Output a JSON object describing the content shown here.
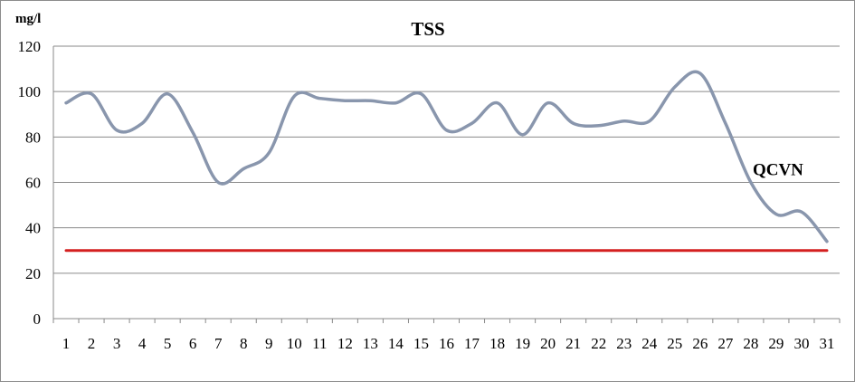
{
  "chart_data": {
    "type": "line",
    "title": "TSS",
    "ylabel": "mg/l",
    "xlabel": "",
    "ylim": [
      0,
      120
    ],
    "yticks": [
      0,
      20,
      40,
      60,
      80,
      100,
      120
    ],
    "grid": true,
    "legend": "none",
    "x": [
      1,
      2,
      3,
      4,
      5,
      6,
      7,
      8,
      9,
      10,
      11,
      12,
      13,
      14,
      15,
      16,
      17,
      18,
      19,
      20,
      21,
      22,
      23,
      24,
      25,
      26,
      27,
      28,
      29,
      30,
      31
    ],
    "x_tick_labels": [
      "1",
      "2",
      "3",
      "4",
      "5",
      "6",
      "7",
      "8",
      "9",
      "10",
      "11",
      "12",
      "13",
      "14",
      "15",
      "16",
      "17",
      "18",
      "19",
      "20",
      "21",
      "22",
      "23",
      "24",
      "25",
      "26",
      "27",
      "28",
      "29",
      "30",
      "31"
    ],
    "series": [
      {
        "color": "#8996ad",
        "smooth": true,
        "values": [
          95,
          99,
          83,
          86,
          99,
          82,
          60,
          66,
          73,
          98,
          97,
          96,
          96,
          95,
          99,
          83,
          86,
          95,
          81,
          95,
          86,
          85,
          87,
          87,
          102,
          108,
          86,
          60,
          46,
          47,
          34
        ]
      },
      {
        "color": "#d42020",
        "values": [
          30,
          30,
          30,
          30,
          30,
          30,
          30,
          30,
          30,
          30,
          30,
          30,
          30,
          30,
          30,
          30,
          30,
          30,
          30,
          30,
          30,
          30,
          30,
          30,
          30,
          30,
          30,
          30,
          30,
          30,
          30
        ]
      }
    ],
    "annotations": [
      {
        "text": "QCVN",
        "x": 29,
        "y": 66
      }
    ]
  }
}
